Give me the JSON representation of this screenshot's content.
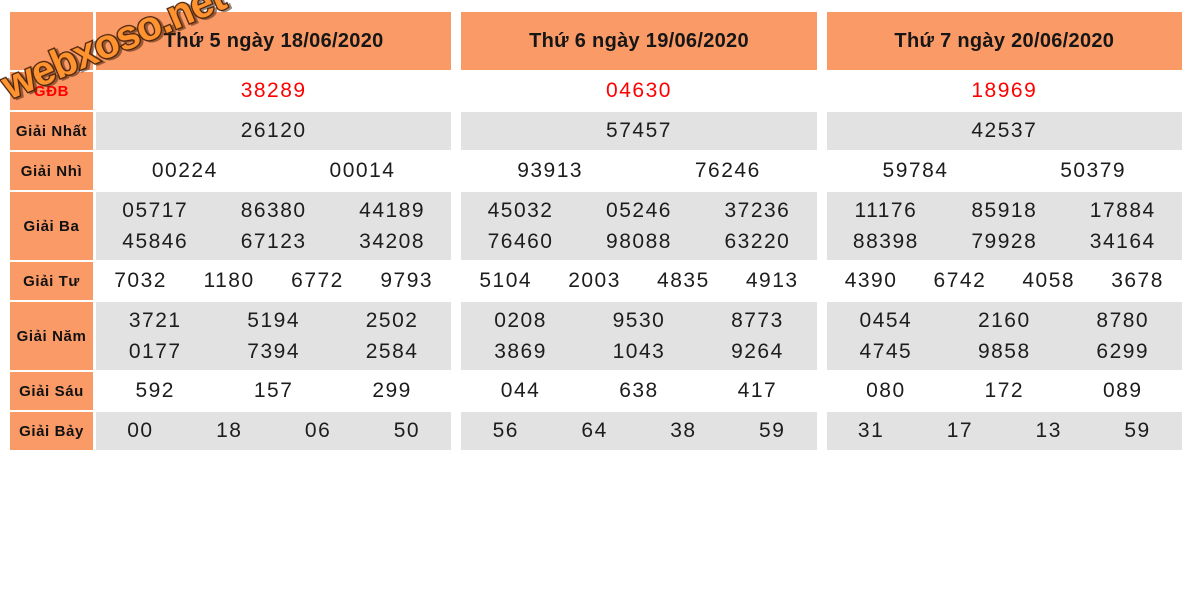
{
  "watermark": {
    "text": "webxoso.net",
    "fill": "#ff9330",
    "outline": "#46200a"
  },
  "colors": {
    "header_bg": "#fa9a66",
    "row_alt_bg": "#e2e2e2",
    "row_bg": "#ffffff",
    "special": "#ff0000",
    "text": "#1d1d1d"
  },
  "table": {
    "row_labels": [
      {
        "key": "gdb",
        "label": "GĐB"
      },
      {
        "key": "nhat",
        "label": "Giải Nhất"
      },
      {
        "key": "nhi",
        "label": "Giải Nhì"
      },
      {
        "key": "ba",
        "label": "Giải Ba"
      },
      {
        "key": "tu",
        "label": "Giải Tư"
      },
      {
        "key": "nam",
        "label": "Giải Năm"
      },
      {
        "key": "sau",
        "label": "Giải Sáu"
      },
      {
        "key": "bay",
        "label": "Giải Bảy"
      }
    ],
    "days": [
      {
        "header": "Thứ 5 ngày 18/06/2020",
        "results": {
          "gdb": [
            "38289"
          ],
          "nhat": [
            "26120"
          ],
          "nhi": [
            "00224",
            "00014"
          ],
          "ba": [
            "05717",
            "86380",
            "44189",
            "45846",
            "67123",
            "34208"
          ],
          "tu": [
            "7032",
            "1180",
            "6772",
            "9793"
          ],
          "nam": [
            "3721",
            "5194",
            "2502",
            "0177",
            "7394",
            "2584"
          ],
          "sau": [
            "592",
            "157",
            "299"
          ],
          "bay": [
            "00",
            "18",
            "06",
            "50"
          ]
        }
      },
      {
        "header": "Thứ 6 ngày 19/06/2020",
        "results": {
          "gdb": [
            "04630"
          ],
          "nhat": [
            "57457"
          ],
          "nhi": [
            "93913",
            "76246"
          ],
          "ba": [
            "45032",
            "05246",
            "37236",
            "76460",
            "98088",
            "63220"
          ],
          "tu": [
            "5104",
            "2003",
            "4835",
            "4913"
          ],
          "nam": [
            "0208",
            "9530",
            "8773",
            "3869",
            "1043",
            "9264"
          ],
          "sau": [
            "044",
            "638",
            "417"
          ],
          "bay": [
            "56",
            "64",
            "38",
            "59"
          ]
        }
      },
      {
        "header": "Thứ 7 ngày 20/06/2020",
        "results": {
          "gdb": [
            "18969"
          ],
          "nhat": [
            "42537"
          ],
          "nhi": [
            "59784",
            "50379"
          ],
          "ba": [
            "11176",
            "85918",
            "17884",
            "88398",
            "79928",
            "34164"
          ],
          "tu": [
            "4390",
            "6742",
            "4058",
            "3678"
          ],
          "nam": [
            "0454",
            "2160",
            "8780",
            "4745",
            "9858",
            "6299"
          ],
          "sau": [
            "080",
            "172",
            "089"
          ],
          "bay": [
            "31",
            "17",
            "13",
            "59"
          ]
        }
      }
    ]
  }
}
